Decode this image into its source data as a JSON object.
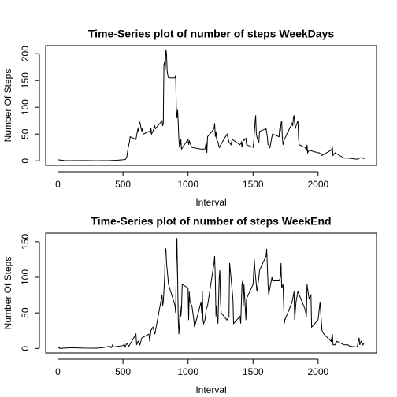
{
  "chart_data": [
    {
      "type": "line",
      "title": "Time-Series plot of number of steps WeekDays",
      "xlabel": "Interval",
      "ylabel": "Number Of Steps",
      "color": "#000000",
      "x": [
        0,
        50,
        100,
        200,
        300,
        400,
        450,
        500,
        520,
        530,
        540,
        550,
        555,
        600,
        610,
        615,
        620,
        625,
        630,
        640,
        645,
        650,
        655,
        700,
        710,
        715,
        720,
        730,
        745,
        750,
        800,
        805,
        810,
        815,
        820,
        825,
        830,
        835,
        840,
        845,
        850,
        900,
        905,
        910,
        915,
        920,
        925,
        930,
        935,
        940,
        945,
        950,
        1000,
        1005,
        1010,
        1020,
        1030,
        1100,
        1130,
        1140,
        1145,
        1150,
        1200,
        1205,
        1210,
        1215,
        1220,
        1230,
        1240,
        1300,
        1310,
        1315,
        1330,
        1340,
        1400,
        1410,
        1415,
        1420,
        1425,
        1430,
        1445,
        1450,
        1500,
        1505,
        1515,
        1520,
        1525,
        1535,
        1545,
        1550,
        1600,
        1610,
        1615,
        1620,
        1630,
        1645,
        1650,
        1700,
        1705,
        1710,
        1715,
        1720,
        1725,
        1730,
        1740,
        1750,
        1800,
        1805,
        1810,
        1815,
        1820,
        1825,
        1830,
        1845,
        1850,
        1855,
        1900,
        1910,
        1915,
        1920,
        1930,
        2000,
        2010,
        2030,
        2100,
        2110,
        2115,
        2130,
        2200,
        2230,
        2300,
        2330,
        2355
      ],
      "values": [
        2,
        0.5,
        0.3,
        0.5,
        0.2,
        0.5,
        1,
        2,
        3,
        8,
        25,
        35,
        45,
        40,
        55,
        60,
        55,
        70,
        72,
        60,
        55,
        62,
        50,
        55,
        52,
        62,
        50,
        55,
        65,
        60,
        75,
        65,
        70,
        180,
        185,
        170,
        208,
        200,
        165,
        160,
        155,
        155,
        160,
        100,
        80,
        95,
        70,
        40,
        25,
        30,
        40,
        22,
        40,
        30,
        38,
        30,
        25,
        22,
        22,
        35,
        15,
        45,
        60,
        70,
        45,
        55,
        40,
        35,
        25,
        50,
        40,
        35,
        30,
        40,
        30,
        35,
        25,
        35,
        40,
        38,
        42,
        30,
        25,
        35,
        70,
        85,
        50,
        40,
        35,
        55,
        60,
        45,
        30,
        30,
        25,
        45,
        50,
        45,
        60,
        55,
        70,
        75,
        45,
        30,
        40,
        45,
        70,
        65,
        80,
        85,
        70,
        60,
        65,
        75,
        40,
        30,
        25,
        20,
        30,
        15,
        20,
        15,
        15,
        10,
        20,
        25,
        10,
        15,
        5,
        5,
        3,
        6,
        4
      ],
      "xlim": [
        -94,
        2449
      ],
      "ylim": [
        -8.5,
        215
      ],
      "xticks": [
        0,
        500,
        1000,
        1500,
        2000
      ],
      "yticks": [
        0,
        50,
        100,
        150,
        200
      ]
    },
    {
      "type": "line",
      "title": "Time-Series plot of number of steps WeekEnd",
      "xlabel": "Interval",
      "ylabel": "Number Of Steps",
      "color": "#000000",
      "x": [
        0,
        10,
        15,
        100,
        200,
        300,
        340,
        400,
        410,
        420,
        430,
        500,
        510,
        515,
        530,
        545,
        600,
        605,
        615,
        630,
        645,
        700,
        705,
        715,
        730,
        745,
        800,
        805,
        810,
        820,
        825,
        830,
        835,
        845,
        850,
        900,
        905,
        910,
        915,
        920,
        925,
        930,
        935,
        940,
        945,
        950,
        955,
        1000,
        1005,
        1010,
        1015,
        1030,
        1045,
        1050,
        1100,
        1105,
        1110,
        1115,
        1120,
        1130,
        1140,
        1150,
        1200,
        1205,
        1210,
        1215,
        1220,
        1225,
        1230,
        1240,
        1245,
        1250,
        1255,
        1300,
        1315,
        1320,
        1325,
        1330,
        1345,
        1350,
        1400,
        1405,
        1415,
        1420,
        1425,
        1430,
        1445,
        1450,
        1500,
        1510,
        1515,
        1530,
        1545,
        1550,
        1600,
        1605,
        1610,
        1615,
        1620,
        1630,
        1645,
        1650,
        1700,
        1710,
        1715,
        1720,
        1730,
        1740,
        1745,
        1800,
        1810,
        1815,
        1820,
        1830,
        1845,
        1900,
        1910,
        1915,
        1930,
        1945,
        1950,
        2000,
        2015,
        2030,
        2045,
        2100,
        2110,
        2115,
        2130,
        2145,
        2200,
        2230,
        2245,
        2300,
        2315,
        2320,
        2330,
        2345,
        2355
      ],
      "values": [
        0,
        2,
        0,
        1,
        0.5,
        0.3,
        1,
        3,
        1,
        5,
        2,
        4,
        6,
        2,
        7,
        3,
        20,
        5,
        10,
        5,
        15,
        20,
        10,
        25,
        30,
        20,
        75,
        60,
        65,
        100,
        140,
        140,
        120,
        100,
        90,
        60,
        50,
        120,
        155,
        100,
        40,
        20,
        35,
        60,
        45,
        55,
        90,
        85,
        40,
        80,
        65,
        60,
        40,
        30,
        65,
        50,
        80,
        40,
        35,
        40,
        55,
        60,
        120,
        130,
        95,
        45,
        60,
        45,
        35,
        100,
        110,
        65,
        50,
        40,
        45,
        120,
        110,
        100,
        70,
        35,
        45,
        35,
        90,
        95,
        60,
        90,
        40,
        70,
        90,
        125,
        110,
        80,
        100,
        110,
        130,
        140,
        115,
        90,
        75,
        85,
        100,
        95,
        95,
        100,
        120,
        85,
        90,
        35,
        40,
        65,
        75,
        80,
        40,
        65,
        80,
        55,
        45,
        90,
        70,
        75,
        30,
        40,
        65,
        25,
        20,
        10,
        20,
        5,
        5,
        10,
        5,
        5,
        3,
        2,
        15,
        5,
        10,
        5,
        8
      ],
      "xlim": [
        -94,
        2449
      ],
      "ylim": [
        -6.3,
        162
      ],
      "xticks": [
        0,
        500,
        1000,
        1500,
        2000
      ],
      "yticks": [
        0,
        50,
        100,
        150
      ]
    }
  ]
}
